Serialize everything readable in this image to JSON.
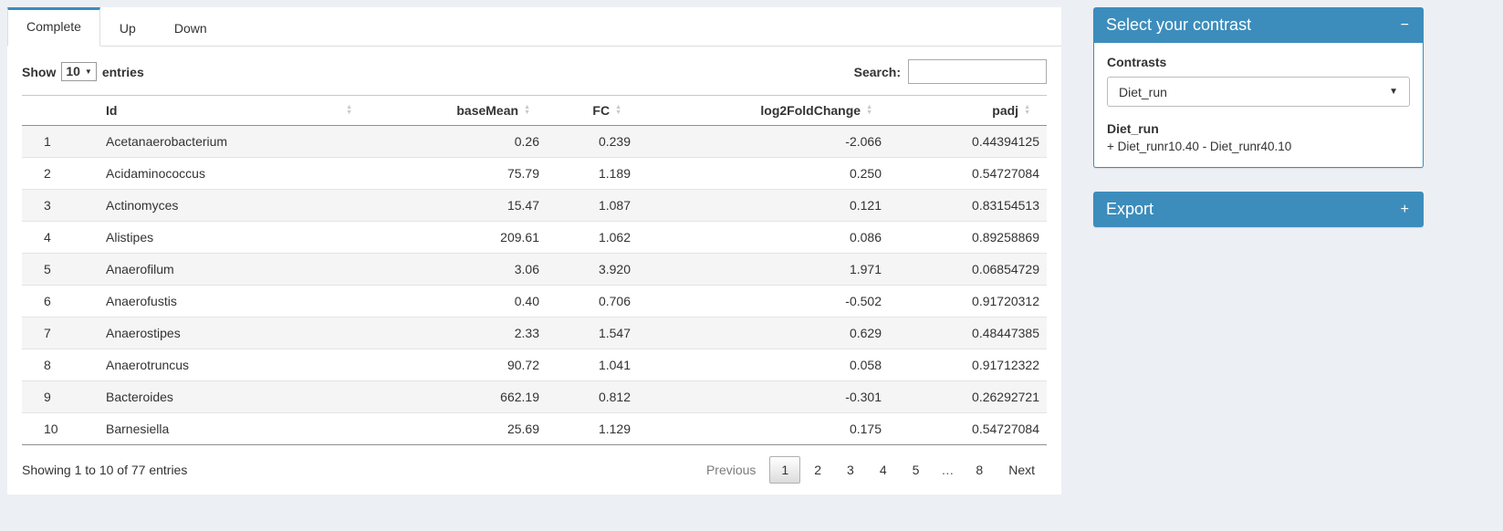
{
  "colors": {
    "primary": "#3c8dbc"
  },
  "tabs": [
    {
      "label": "Complete",
      "active": true
    },
    {
      "label": "Up",
      "active": false
    },
    {
      "label": "Down",
      "active": false
    }
  ],
  "length_control": {
    "show": "Show",
    "value": "10",
    "entries": "entries"
  },
  "search": {
    "label": "Search:",
    "value": ""
  },
  "table": {
    "headers": {
      "id": "Id",
      "basemean": "baseMean",
      "fc": "FC",
      "log2fc": "log2FoldChange",
      "padj": "padj"
    },
    "rows": [
      {
        "num": "1",
        "id": "Acetanaerobacterium",
        "basemean": "0.26",
        "fc": "0.239",
        "log2fc": "-2.066",
        "padj": "0.44394125"
      },
      {
        "num": "2",
        "id": "Acidaminococcus",
        "basemean": "75.79",
        "fc": "1.189",
        "log2fc": "0.250",
        "padj": "0.54727084"
      },
      {
        "num": "3",
        "id": "Actinomyces",
        "basemean": "15.47",
        "fc": "1.087",
        "log2fc": "0.121",
        "padj": "0.83154513"
      },
      {
        "num": "4",
        "id": "Alistipes",
        "basemean": "209.61",
        "fc": "1.062",
        "log2fc": "0.086",
        "padj": "0.89258869"
      },
      {
        "num": "5",
        "id": "Anaerofilum",
        "basemean": "3.06",
        "fc": "3.920",
        "log2fc": "1.971",
        "padj": "0.06854729"
      },
      {
        "num": "6",
        "id": "Anaerofustis",
        "basemean": "0.40",
        "fc": "0.706",
        "log2fc": "-0.502",
        "padj": "0.91720312"
      },
      {
        "num": "7",
        "id": "Anaerostipes",
        "basemean": "2.33",
        "fc": "1.547",
        "log2fc": "0.629",
        "padj": "0.48447385"
      },
      {
        "num": "8",
        "id": "Anaerotruncus",
        "basemean": "90.72",
        "fc": "1.041",
        "log2fc": "0.058",
        "padj": "0.91712322"
      },
      {
        "num": "9",
        "id": "Bacteroides",
        "basemean": "662.19",
        "fc": "0.812",
        "log2fc": "-0.301",
        "padj": "0.26292721"
      },
      {
        "num": "10",
        "id": "Barnesiella",
        "basemean": "25.69",
        "fc": "1.129",
        "log2fc": "0.175",
        "padj": "0.54727084"
      }
    ]
  },
  "footer": {
    "info": "Showing 1 to 10 of 77 entries",
    "pagination": [
      {
        "label": "Previous",
        "state": "disabled"
      },
      {
        "label": "1",
        "state": "active"
      },
      {
        "label": "2",
        "state": "normal"
      },
      {
        "label": "3",
        "state": "normal"
      },
      {
        "label": "4",
        "state": "normal"
      },
      {
        "label": "5",
        "state": "normal"
      },
      {
        "label": "…",
        "state": "ellipsis"
      },
      {
        "label": "8",
        "state": "normal"
      },
      {
        "label": "Next",
        "state": "normal"
      }
    ]
  },
  "contrast_box": {
    "title": "Select your contrast",
    "collapse_icon": "−",
    "contrasts_label": "Contrasts",
    "selected_contrast": "Diet_run",
    "contrast_name": "Diet_run",
    "contrast_formula": "+ Diet_runr10.40 - Diet_runr40.10"
  },
  "export_box": {
    "title": "Export",
    "expand_icon": "+"
  }
}
